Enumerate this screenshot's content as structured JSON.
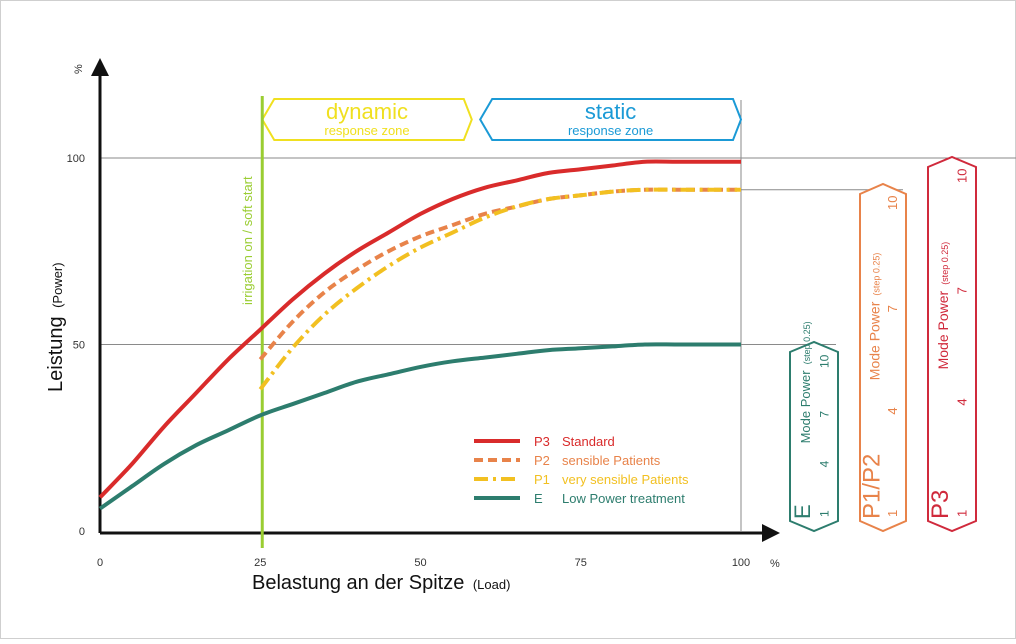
{
  "chart_data": {
    "type": "line",
    "xlabel": "Belastung an der Spitze",
    "xlabel_unit": "(Load)",
    "ylabel": "Leistung",
    "ylabel_unit": "(Power)",
    "x_unit": "%",
    "y_unit": "%",
    "xlim": [
      0,
      100
    ],
    "ylim": [
      0,
      100
    ],
    "x_ticks": [
      "0",
      "25",
      "50",
      "75",
      "100"
    ],
    "y_ticks": [
      "0",
      "50",
      "100"
    ],
    "grid": false,
    "legend_position": "bottom-center",
    "series": [
      {
        "name": "Standard",
        "code": "P3",
        "color": "#d92b2b",
        "style": "solid",
        "x": [
          0,
          5,
          10,
          15,
          20,
          25,
          30,
          35,
          40,
          45,
          50,
          55,
          60,
          65,
          70,
          75,
          80,
          85,
          90,
          95,
          100
        ],
        "y": [
          9,
          18,
          28,
          37,
          46,
          54,
          62,
          69,
          75,
          80,
          85,
          89,
          92,
          94,
          96,
          97,
          98,
          99,
          99,
          99,
          99
        ]
      },
      {
        "name": "sensible Patients",
        "code": "P2",
        "color": "#e8834a",
        "style": "dashed",
        "x": [
          25,
          30,
          35,
          40,
          45,
          50,
          55,
          60,
          65,
          70,
          75,
          80,
          85,
          90,
          95,
          100
        ],
        "y": [
          46,
          56,
          64,
          70,
          75,
          79,
          82,
          85,
          87,
          89,
          90,
          91,
          91.5,
          91.5,
          91.5,
          91.5
        ]
      },
      {
        "name": "very sensible Patients",
        "code": "P1",
        "color": "#f2c021",
        "style": "dashdot",
        "x": [
          25,
          30,
          35,
          40,
          45,
          50,
          55,
          60,
          65,
          70,
          75,
          80,
          85,
          90,
          95,
          100
        ],
        "y": [
          38,
          49,
          58,
          65,
          71,
          76,
          80,
          84,
          87,
          89,
          90,
          91,
          91.5,
          91.5,
          91.5,
          91.5
        ]
      },
      {
        "name": "Low Power treatment",
        "code": "E",
        "color": "#2d7d6e",
        "style": "solid",
        "x": [
          0,
          5,
          10,
          15,
          20,
          25,
          30,
          35,
          40,
          45,
          50,
          55,
          60,
          65,
          70,
          75,
          80,
          85,
          90,
          95,
          100
        ],
        "y": [
          6,
          12,
          18,
          23,
          27,
          31,
          34,
          37,
          40,
          42,
          44,
          45.5,
          46.5,
          47.5,
          48.5,
          49,
          49.5,
          50,
          50,
          50,
          50
        ]
      }
    ],
    "annotations": {
      "vertical_line": {
        "label": "irrigation on / soft start",
        "x": 25,
        "color": "#9acd32"
      },
      "zones": [
        {
          "title": "dynamic",
          "subtitle": "response zone",
          "x_range": [
            25,
            58
          ],
          "color": "#f0e020"
        },
        {
          "title": "static",
          "subtitle": "response zone",
          "x_range": [
            59,
            100
          ],
          "color": "#1b9ad6"
        }
      ],
      "mode_panels": [
        {
          "code": "E",
          "title": "Mode Power",
          "step": "(step 0.25)",
          "ticks": [
            "1",
            "4",
            "7",
            "10"
          ],
          "max_y": 50,
          "color": "#2d7d6e"
        },
        {
          "code": "P1/P2",
          "title": "Mode Power",
          "step": "(step 0.25)",
          "ticks": [
            "1",
            "4",
            "7",
            "10"
          ],
          "max_y": 92,
          "color": "#e8834a"
        },
        {
          "code": "P3",
          "title": "Mode Power",
          "step": "(step 0.25)",
          "ticks": [
            "1",
            "4",
            "7",
            "10"
          ],
          "max_y": 100,
          "color": "#d02a3c"
        }
      ]
    }
  }
}
